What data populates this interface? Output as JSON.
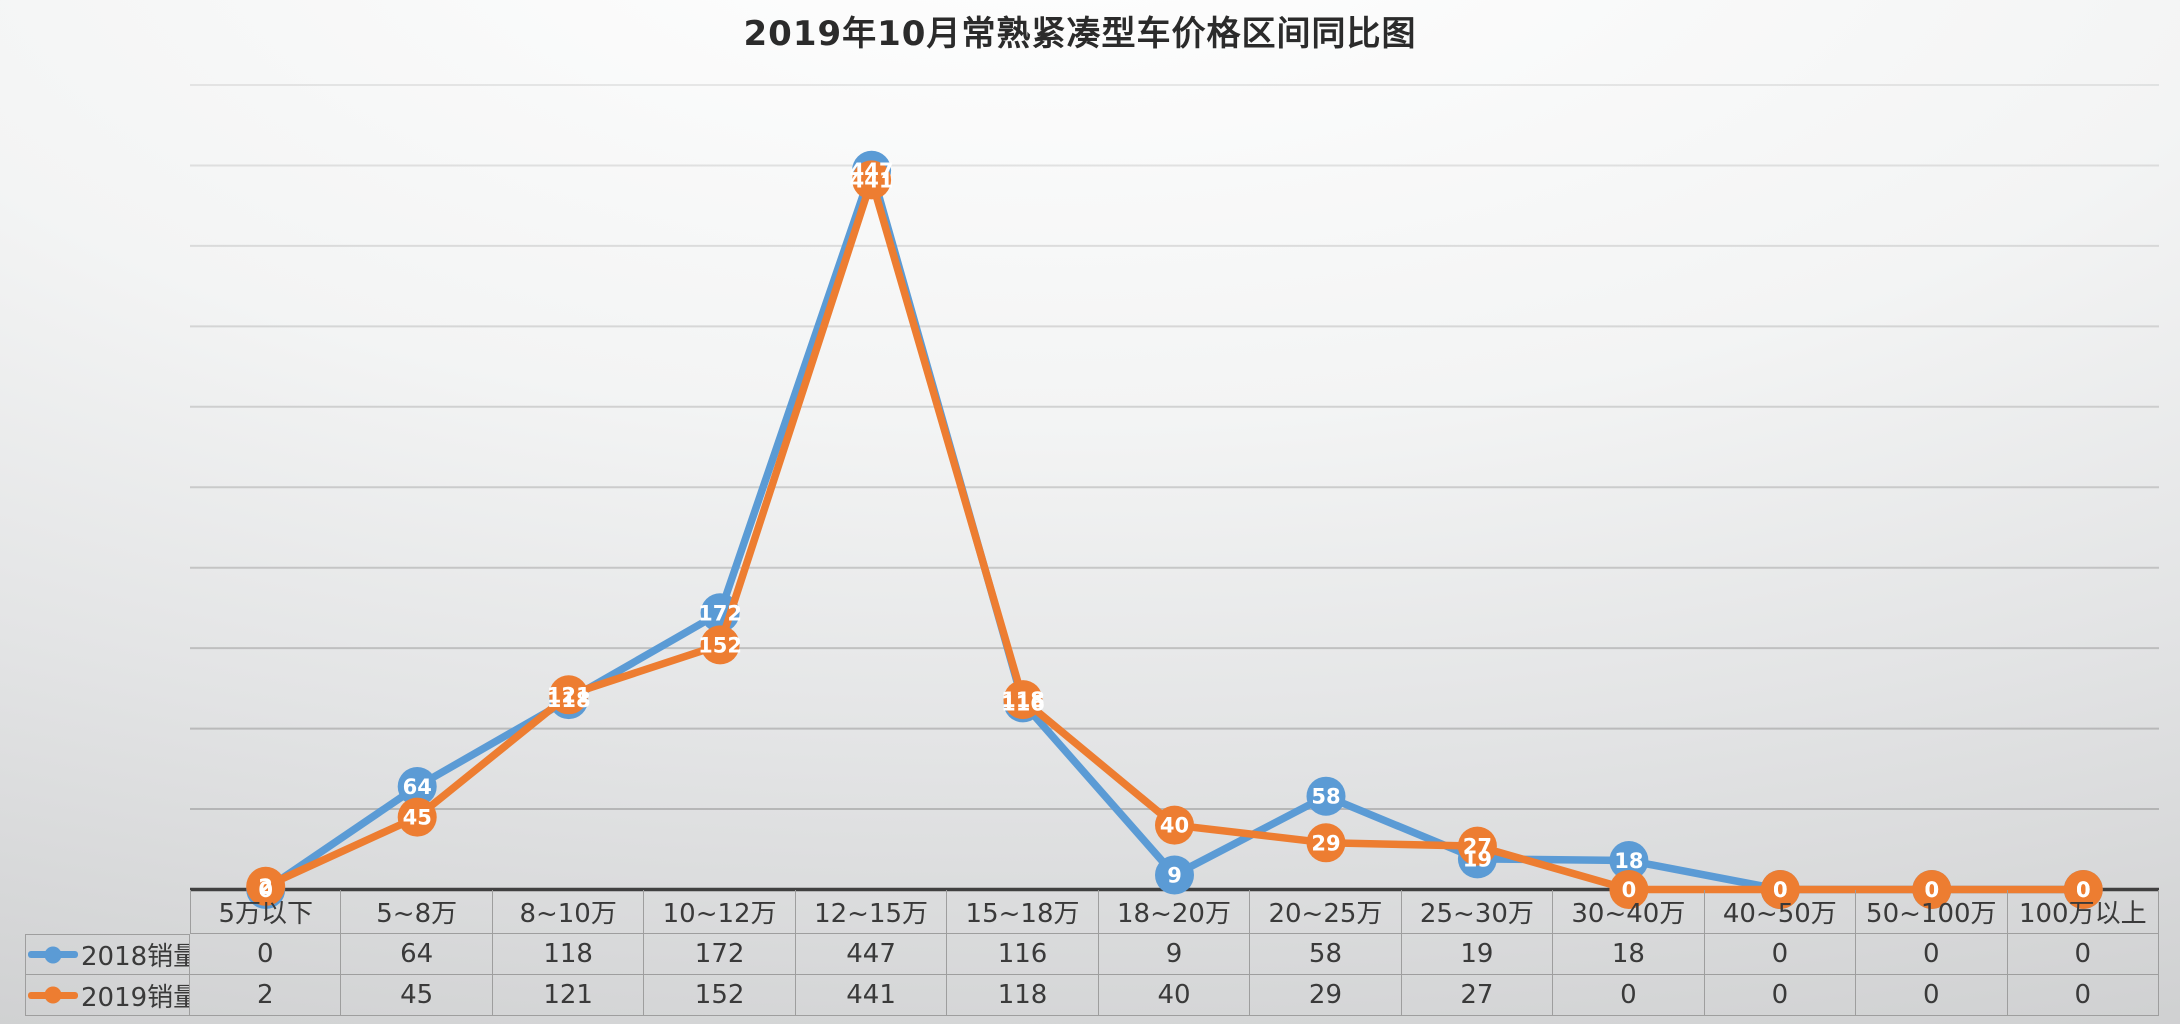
{
  "title": "2019年10月常熟紧凑型车价格区间同比图",
  "chart_data": {
    "type": "line",
    "title": "2019年10月常熟紧凑型车价格区间同比图",
    "xlabel": "",
    "ylabel": "",
    "categories": [
      "5万以下",
      "5~8万",
      "8~10万",
      "10~12万",
      "12~15万",
      "15~18万",
      "18~20万",
      "20~25万",
      "25~30万",
      "30~40万",
      "40~50万",
      "50~100万",
      "100万以上"
    ],
    "series": [
      {
        "name": "2018销量",
        "color": "#5B9BD5",
        "values": [
          0,
          64,
          118,
          172,
          447,
          116,
          9,
          58,
          19,
          18,
          0,
          0,
          0
        ]
      },
      {
        "name": "2019销量",
        "color": "#ED7D31",
        "values": [
          2,
          45,
          121,
          152,
          441,
          118,
          40,
          29,
          27,
          0,
          0,
          0,
          0
        ]
      }
    ],
    "ylim": [
      0,
      500
    ],
    "gridline_step": 50,
    "grid": "horizontal-only",
    "y_axis_labels_visible": false,
    "data_labels": "centered-on-markers",
    "legend_position": "data-table-left-column"
  },
  "palette": {
    "series_blue": "#5B9BD5",
    "series_orange": "#ED7D31",
    "axis_line": "#404040",
    "gridline": "#8f8f8f",
    "table_border": "#9e9e9e",
    "text": "#3a3a3a",
    "label_text": "#ffffff"
  }
}
